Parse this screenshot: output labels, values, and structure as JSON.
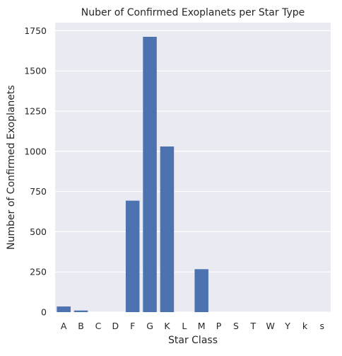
{
  "chart_data": {
    "type": "bar",
    "title": "Nuber of Confirmed Exoplanets per Star Type",
    "xlabel": "Star Class",
    "ylabel": "Number of Confirmed Exoplanets",
    "categories": [
      "A",
      "B",
      "C",
      "D",
      "F",
      "G",
      "K",
      "L",
      "M",
      "P",
      "S",
      "T",
      "W",
      "Y",
      "k",
      "s"
    ],
    "values": [
      35,
      10,
      0,
      0,
      693,
      1712,
      1030,
      0,
      267,
      0,
      0,
      0,
      0,
      0,
      0,
      0
    ],
    "ylim": [
      0,
      1800
    ],
    "yticks": [
      0,
      250,
      500,
      750,
      1000,
      1250,
      1500,
      1750
    ],
    "grid": true,
    "colors": {
      "bar": "#4c72b0",
      "plot_bg": "#eaeaf2",
      "grid": "#ffffff",
      "text": "#262626"
    }
  }
}
